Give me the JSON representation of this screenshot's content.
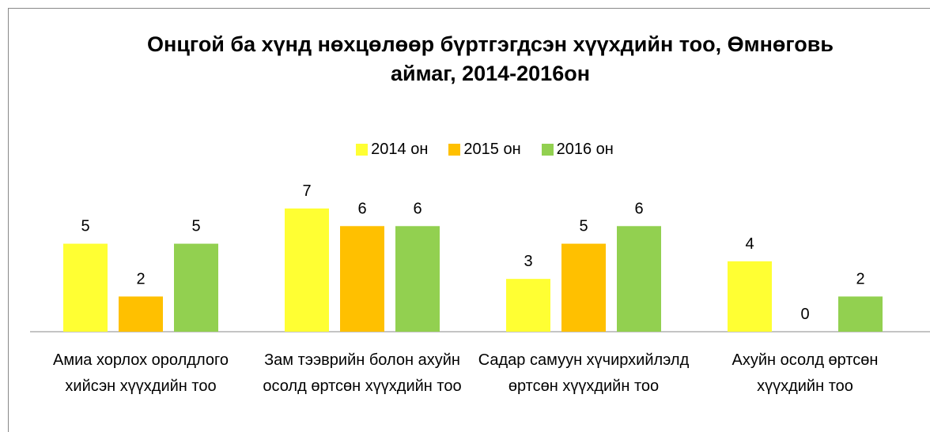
{
  "chart_data": {
    "type": "bar",
    "title": "Онцгой ба хүнд нөхцөлөөр бүртгэгдсэн хүүхдийн тоо, Өмнөговь аймаг, 2014-2016он",
    "categories": [
      "Амиа хорлох оролдлого хийсэн хүүхдийн тоо",
      "Зам тээврийн болон ахуйн осолд өртсөн хүүхдийн тоо",
      "Садар самуун хүчирхийлэлд өртсөн хүүхдийн тоо",
      "Ахуйн осолд өртсөн хүүхдийн тоо"
    ],
    "series": [
      {
        "name": "2014 он",
        "color": "#ffff33",
        "values": [
          5,
          7,
          3,
          4
        ]
      },
      {
        "name": "2015 он",
        "color": "#ffc000",
        "values": [
          2,
          6,
          5,
          0
        ]
      },
      {
        "name": "2016 он",
        "color": "#92d050",
        "values": [
          5,
          6,
          6,
          2
        ]
      }
    ],
    "legend": "top"
  }
}
